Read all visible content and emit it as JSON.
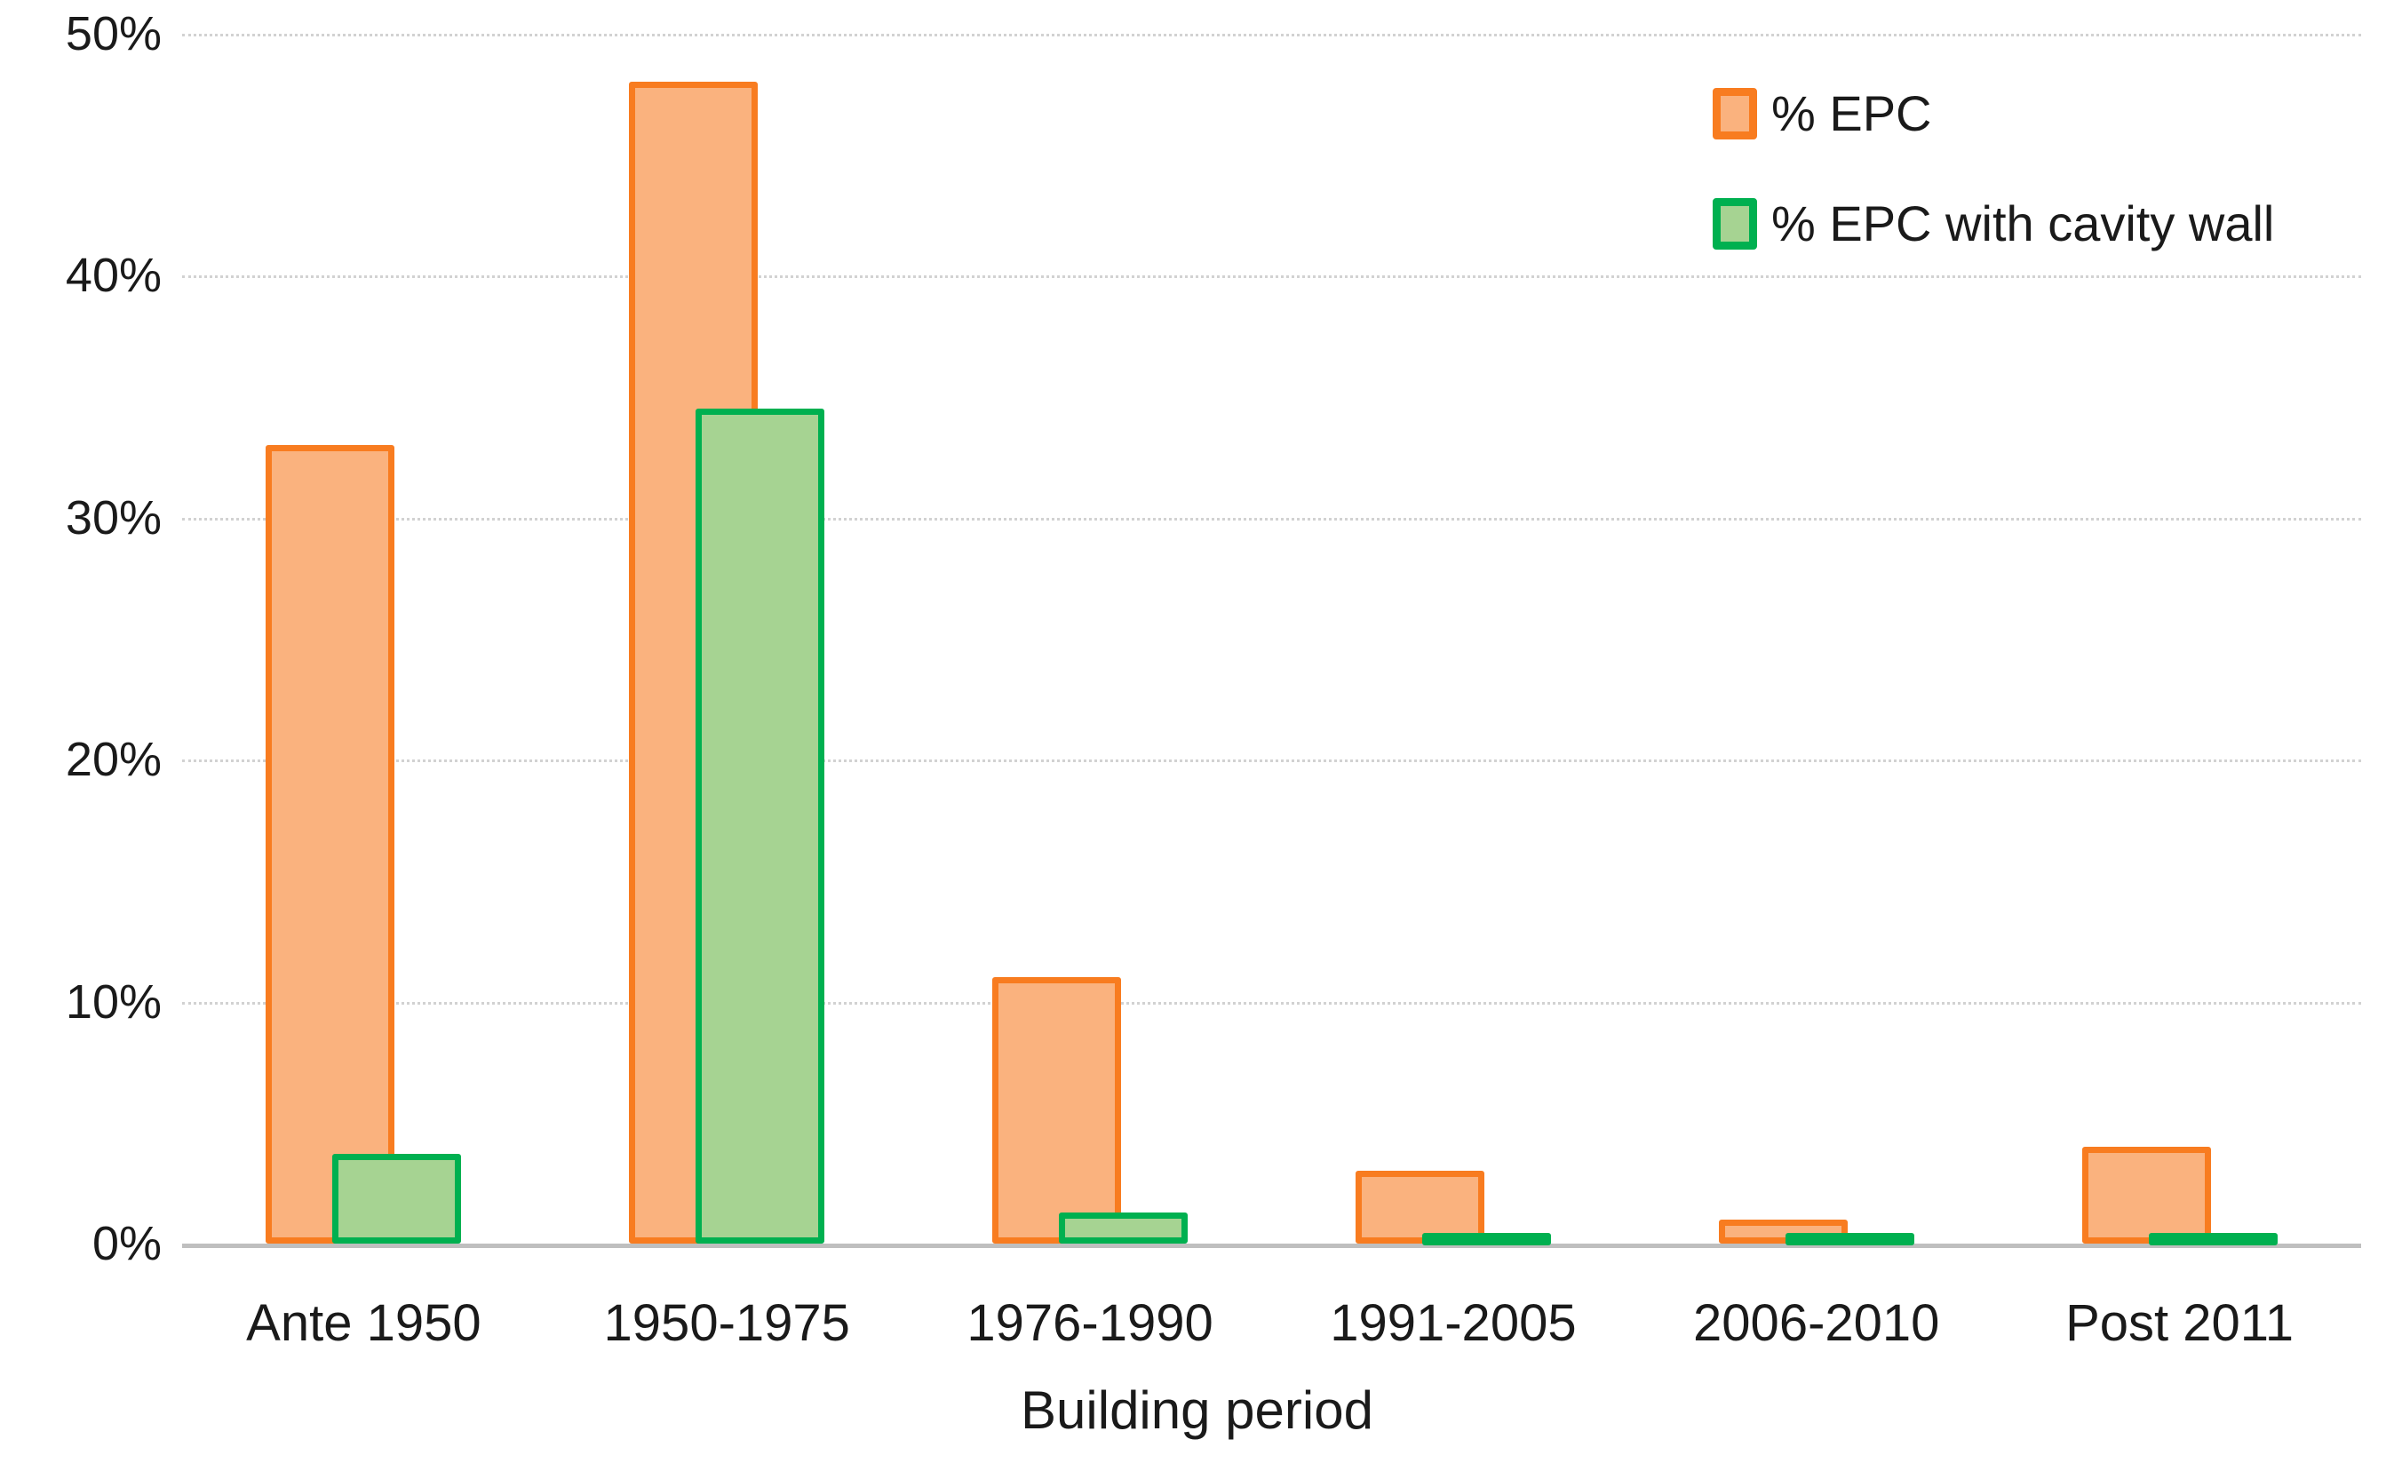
{
  "chart_data": {
    "type": "bar",
    "title": "",
    "xlabel": "Building period",
    "ylabel": "",
    "categories": [
      "Ante 1950",
      "1950-1975",
      "1976-1990",
      "1991-2005",
      "2006-2010",
      "Post 2011"
    ],
    "series": [
      {
        "name": "% EPC",
        "fill_color": "#FAB27E",
        "border_color": "#F87C20",
        "values": [
          33,
          48,
          11,
          3,
          1,
          4
        ]
      },
      {
        "name": "% EPC with cavity wall",
        "fill_color": "#A6D392",
        "border_color": "#00B050",
        "values": [
          3.7,
          34.5,
          1.3,
          0.2,
          0.2,
          0.2
        ]
      }
    ],
    "y_ticks": [
      {
        "value": 50,
        "label": "50%"
      },
      {
        "value": 40,
        "label": "40%"
      },
      {
        "value": 30,
        "label": "30%"
      },
      {
        "value": 20,
        "label": "20%"
      },
      {
        "value": 10,
        "label": "10%"
      },
      {
        "value": 0,
        "label": "0%"
      }
    ],
    "ylim": [
      0,
      50
    ],
    "grid": true,
    "legend_position": "top-right",
    "colors": {
      "gridline": "#d2d2d2",
      "baseline": "#bfbfbf",
      "text": "#1a1a1a",
      "background": "#ffffff"
    }
  }
}
